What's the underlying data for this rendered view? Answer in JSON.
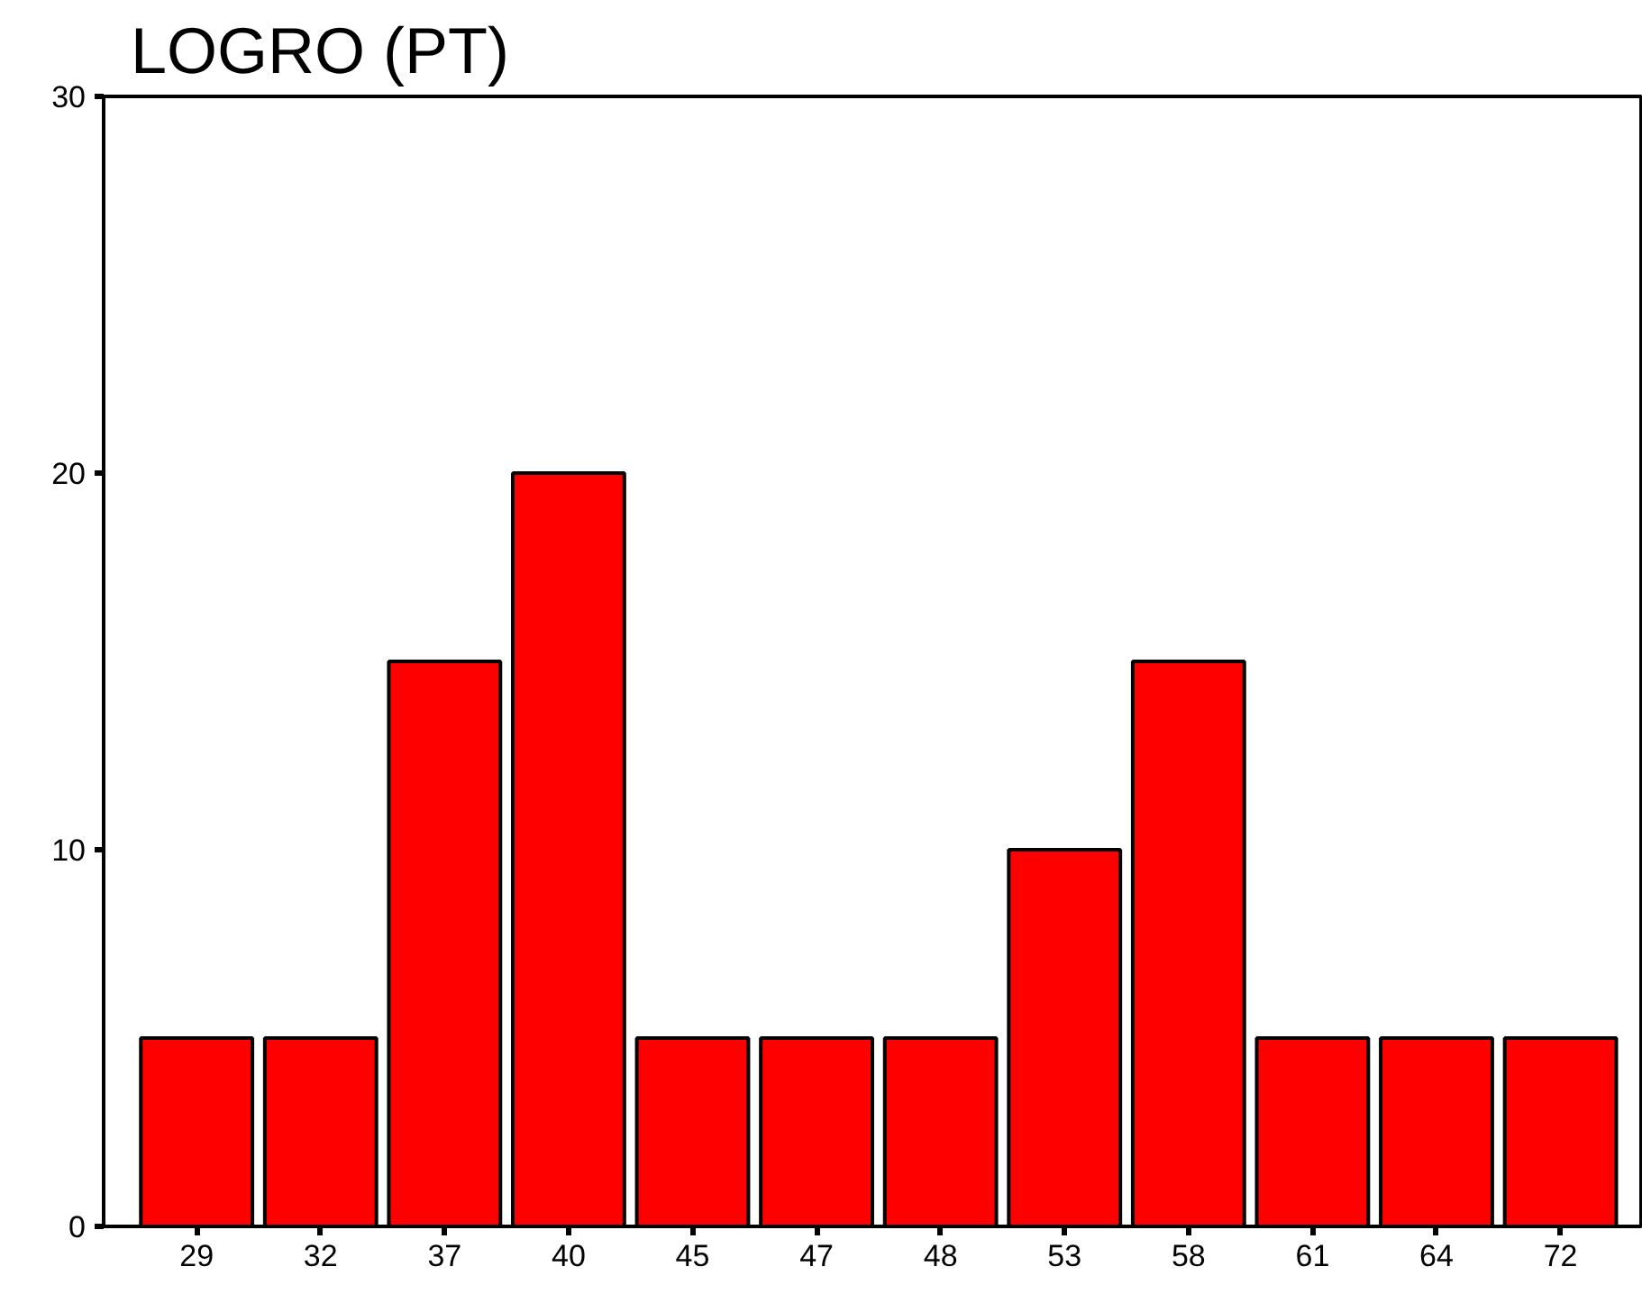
{
  "chart_data": {
    "type": "bar",
    "title": "LOGRO (PT)",
    "categories": [
      "29",
      "32",
      "37",
      "40",
      "45",
      "47",
      "48",
      "53",
      "58",
      "61",
      "64",
      "72"
    ],
    "values": [
      5,
      5,
      15,
      20,
      5,
      5,
      5,
      10,
      15,
      5,
      5,
      5
    ],
    "color": "#ff0000",
    "ylim": [
      0,
      30
    ],
    "yticks": [
      0,
      10,
      20,
      30
    ],
    "grid": false
  }
}
